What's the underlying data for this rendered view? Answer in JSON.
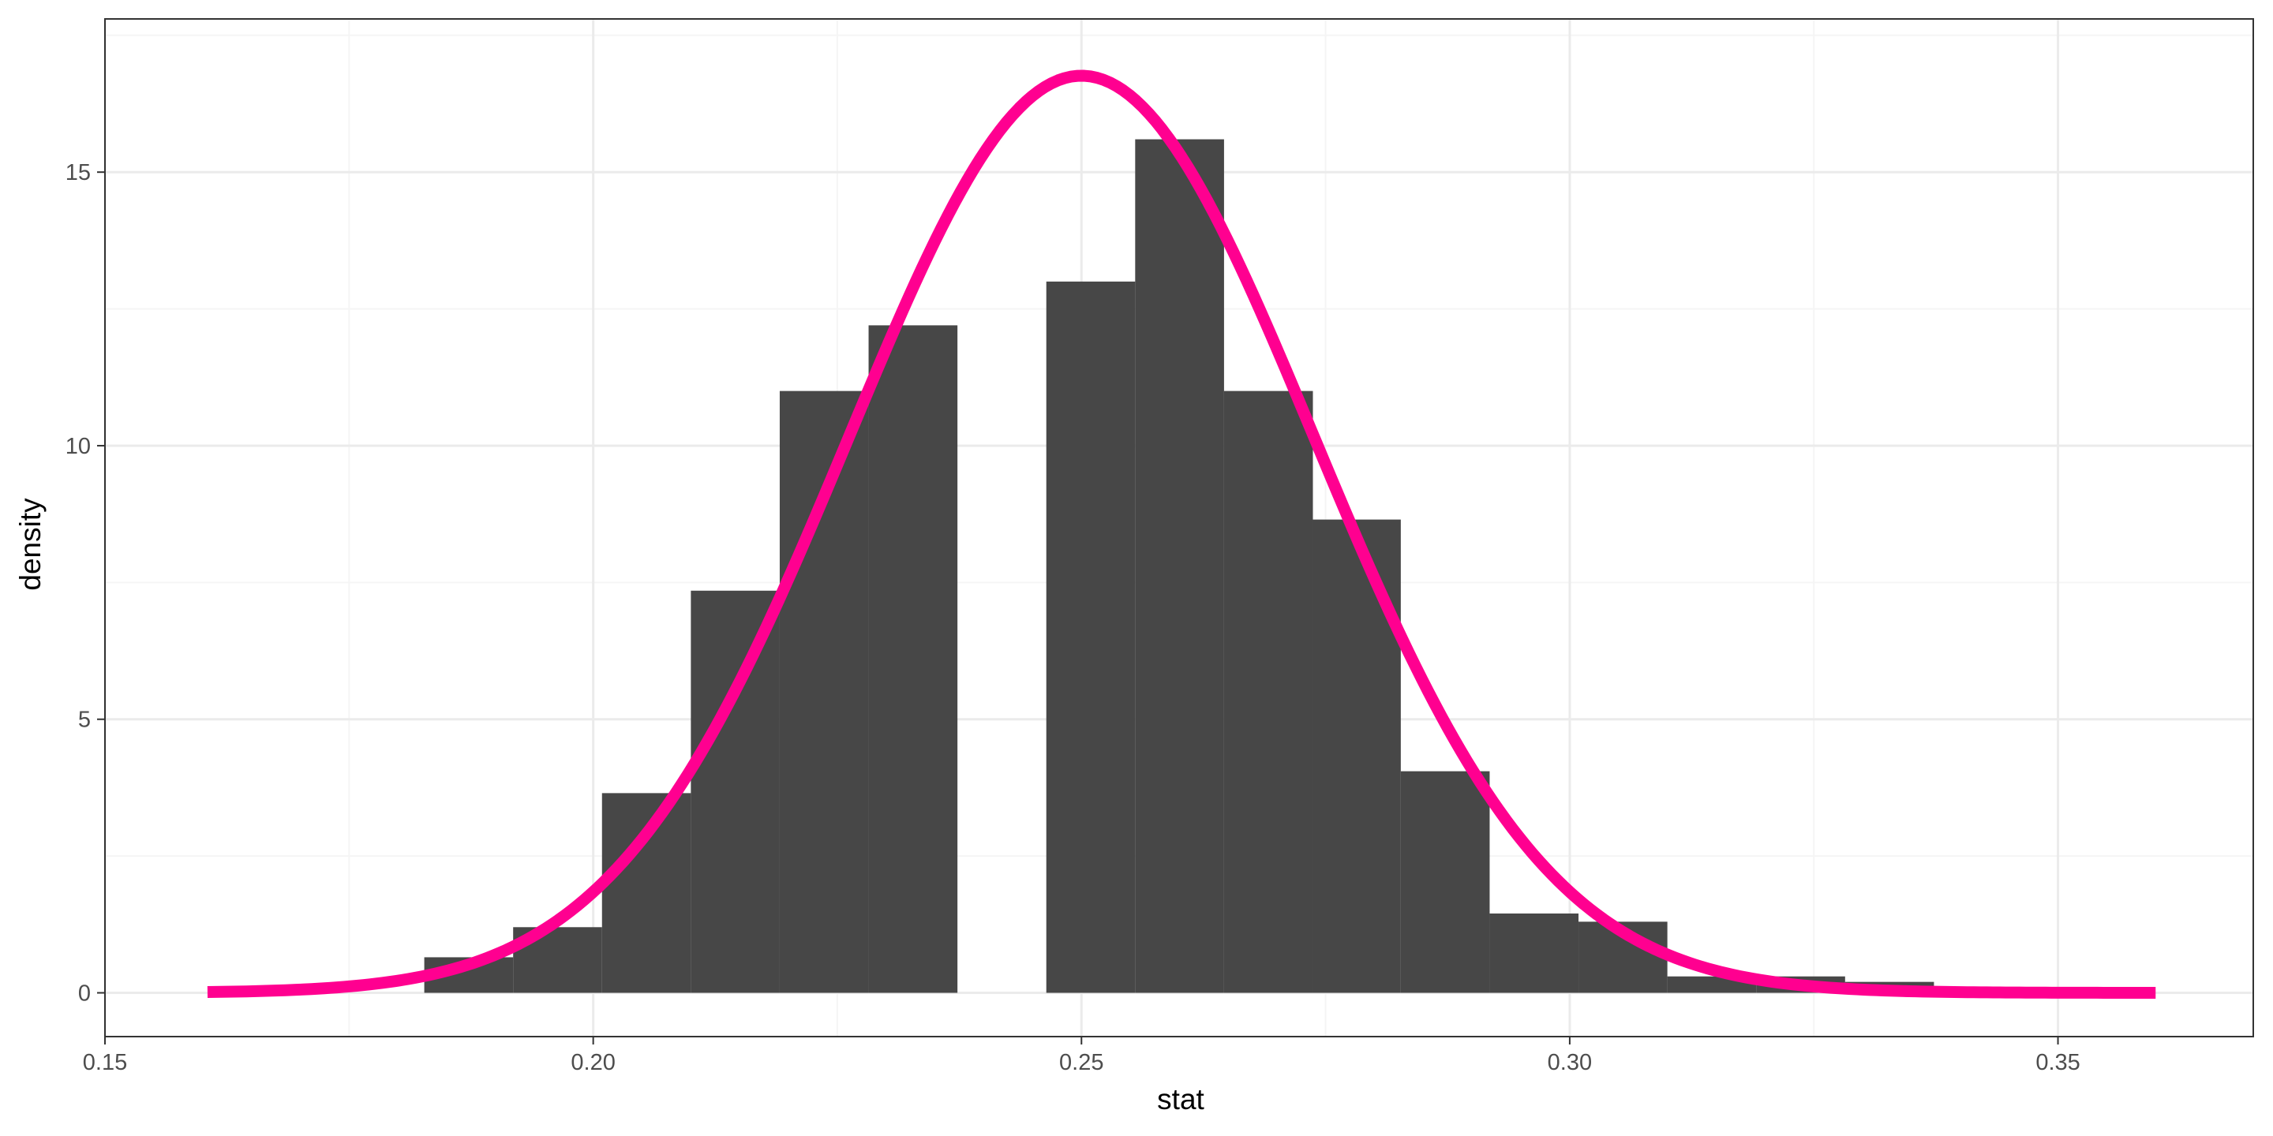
{
  "chart_data": {
    "type": "bar",
    "subtype": "histogram-with-density-curve",
    "xlabel": "stat",
    "ylabel": "density",
    "xlim": [
      0.15,
      0.37
    ],
    "ylim": [
      -0.8,
      17.8
    ],
    "x_ticks": [
      0.15,
      0.2,
      0.25,
      0.3,
      0.35
    ],
    "x_tick_labels": [
      "0.15",
      "0.20",
      "0.25",
      "0.30",
      "0.35"
    ],
    "y_ticks": [
      0,
      5,
      10,
      15
    ],
    "y_tick_labels": [
      "0",
      "5",
      "10",
      "15"
    ],
    "grid": true,
    "legend": "none",
    "bin_width": 0.00909,
    "bins": [
      {
        "x_start": 0.1827,
        "x_end": 0.1918,
        "density": 0.65
      },
      {
        "x_start": 0.1918,
        "x_end": 0.2009,
        "density": 1.2
      },
      {
        "x_start": 0.2009,
        "x_end": 0.21,
        "density": 3.65
      },
      {
        "x_start": 0.21,
        "x_end": 0.2191,
        "density": 7.35
      },
      {
        "x_start": 0.2191,
        "x_end": 0.2282,
        "density": 11.0
      },
      {
        "x_start": 0.2282,
        "x_end": 0.2373,
        "density": 12.2
      },
      {
        "x_start": 0.2373,
        "x_end": 0.2464,
        "density": 0.0
      },
      {
        "x_start": 0.2464,
        "x_end": 0.2555,
        "density": 13.0
      },
      {
        "x_start": 0.2555,
        "x_end": 0.2646,
        "density": 15.6
      },
      {
        "x_start": 0.2646,
        "x_end": 0.2737,
        "density": 11.0
      },
      {
        "x_start": 0.2737,
        "x_end": 0.2827,
        "density": 8.65
      },
      {
        "x_start": 0.2827,
        "x_end": 0.2918,
        "density": 4.05
      },
      {
        "x_start": 0.2918,
        "x_end": 0.3009,
        "density": 1.45
      },
      {
        "x_start": 0.3009,
        "x_end": 0.31,
        "density": 1.3
      },
      {
        "x_start": 0.31,
        "x_end": 0.3191,
        "density": 0.3
      },
      {
        "x_start": 0.3191,
        "x_end": 0.3282,
        "density": 0.3
      },
      {
        "x_start": 0.3282,
        "x_end": 0.3373,
        "density": 0.2
      }
    ],
    "density_curve": {
      "distribution": "normal",
      "mean": 0.25,
      "sd": 0.0238,
      "x_range": [
        0.1605,
        0.36
      ]
    },
    "colors": {
      "bars": "#474747",
      "curve": "#ff0090",
      "grid_major": "#ebebeb",
      "grid_minor": "#f5f5f5",
      "panel_border": "#333333",
      "background": "#ffffff"
    }
  }
}
